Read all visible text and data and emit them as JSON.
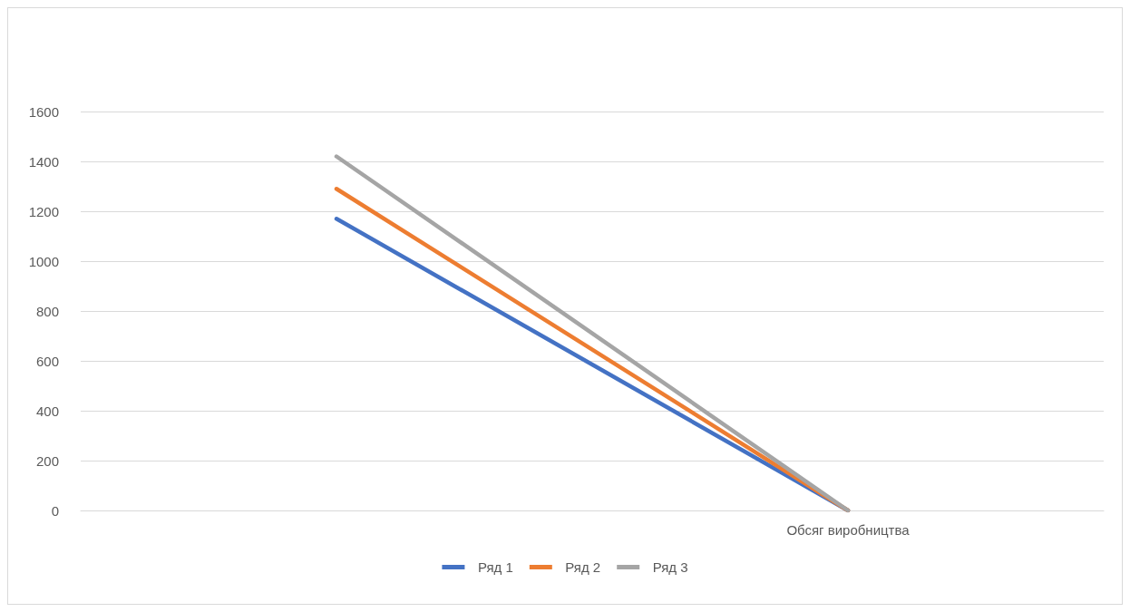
{
  "chart_data": {
    "type": "line",
    "categories": [
      null,
      "Обсяг виробництва"
    ],
    "series": [
      {
        "name": "Ряд 1",
        "color": "#4472c4",
        "values": [
          1170,
          0
        ]
      },
      {
        "name": "Ряд 2",
        "color": "#ed7d31",
        "values": [
          1290,
          0
        ]
      },
      {
        "name": "Ряд 3",
        "color": "#a5a5a5",
        "values": [
          1420,
          0
        ]
      }
    ],
    "ylim": [
      0,
      1600
    ],
    "yticks": [
      0,
      200,
      400,
      600,
      800,
      1000,
      1200,
      1400,
      1600
    ],
    "grid": "y",
    "legend": "bottom",
    "marker": "none",
    "line_style": "solid"
  }
}
